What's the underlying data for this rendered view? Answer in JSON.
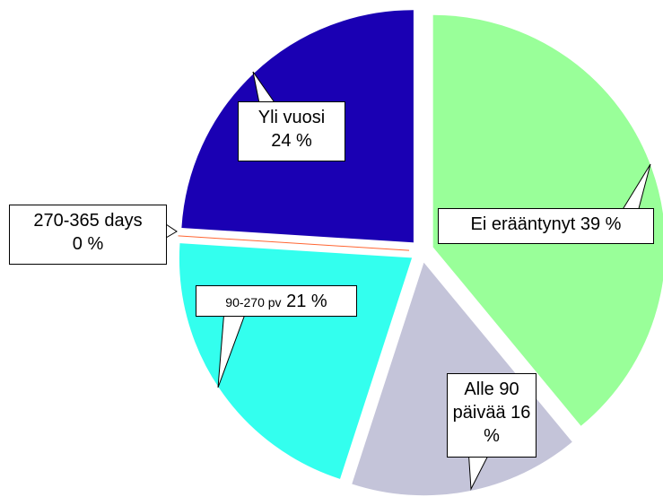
{
  "chart_data": {
    "type": "pie",
    "categories": [
      "Ei erääntynyt",
      "Alle 90 päivää",
      "90-270 pv",
      "270-365 days",
      "Yli vuosi"
    ],
    "values": [
      39,
      16,
      21,
      0,
      24
    ],
    "value_labels": [
      "39 %",
      "16 %",
      "21 %",
      "0 %",
      "24 %"
    ],
    "colors": [
      "#99ff99",
      "#c4c4d9",
      "#33ffee",
      "#ff6633",
      "#1a00b3"
    ]
  }
}
